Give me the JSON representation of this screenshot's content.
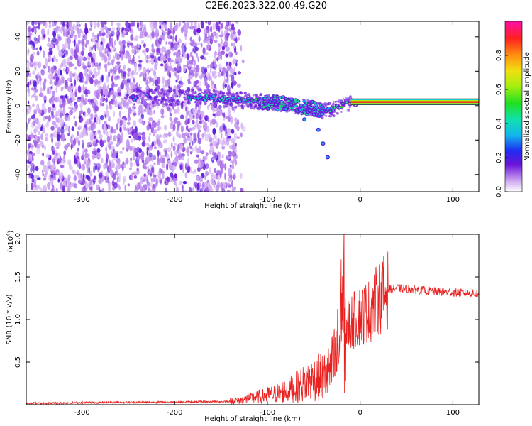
{
  "title": "C2E6.2023.322.00.49.G20",
  "colors": {
    "snr_line": "#e8211f",
    "spectrum_low": "#7a18d8",
    "spectrum_mid": "#19d4c9",
    "spectrum_high": "#ff2020"
  },
  "chart_data": [
    {
      "type": "heatmap",
      "xlabel": "Height of straight line (km)",
      "ylabel": "Frequency (Hz)",
      "xlim": [
        -360,
        128
      ],
      "ylim": [
        -50,
        49
      ],
      "xticks": [
        -300,
        -200,
        -100,
        0,
        100
      ],
      "yticks": [
        -40,
        -20,
        0,
        20,
        40
      ],
      "colorbar": {
        "label": "Normalized spectral amplitude",
        "range": [
          0,
          1
        ],
        "ticks": [
          0.0,
          0.2,
          0.4,
          0.6,
          0.8
        ]
      },
      "noise_region": {
        "x": [
          -360,
          -133
        ],
        "frequency": [
          -50,
          49
        ],
        "amplitude": 0.2
      },
      "signal_track": {
        "x": [
          -245,
          -180,
          -150,
          -120,
          -100,
          -80,
          -60,
          -40,
          -20,
          0,
          20,
          60,
          100,
          128
        ],
        "frequency": [
          5,
          5,
          4,
          3,
          2,
          1,
          -1,
          -3,
          0,
          2,
          2,
          2,
          2,
          2
        ],
        "amplitude": [
          0.35,
          0.35,
          0.4,
          0.45,
          0.4,
          0.4,
          0.4,
          0.35,
          0.45,
          0.8,
          0.9,
          0.9,
          0.9,
          0.9
        ]
      },
      "branch": {
        "x": [
          -80,
          -60,
          -45,
          -40,
          -35
        ],
        "frequency": [
          -2,
          -8,
          -14,
          -22,
          -30
        ]
      }
    },
    {
      "type": "line",
      "xlabel": "Height of straight line (km)",
      "ylabel": "SNR (10 * v/v)",
      "y_multiplier": "(x10",
      "y_multiplier_exp": "4",
      "y_multiplier_close": ")",
      "xlim": [
        -360,
        128
      ],
      "ylim": [
        0,
        20000
      ],
      "xticks": [
        -300,
        -200,
        -100,
        0,
        100
      ],
      "yticks": [
        5000,
        10000,
        15000,
        20000
      ],
      "ytick_labels": [
        "0.5",
        "1.0",
        "1.5",
        "2.0"
      ],
      "series": [
        {
          "x": [
            -360,
            -300,
            -200,
            -150,
            -130,
            -110,
            -90,
            -70,
            -50,
            -35,
            -28,
            -22,
            -18,
            -12,
            -5,
            0,
            10,
            20,
            30,
            40,
            60,
            80,
            100,
            128
          ],
          "values": [
            150,
            250,
            300,
            350,
            500,
            900,
            1300,
            2000,
            3000,
            3500,
            5000,
            7000,
            8500,
            9500,
            10000,
            10500,
            11000,
            12500,
            13500,
            13700,
            13500,
            13300,
            13200,
            13000
          ]
        }
      ]
    }
  ]
}
